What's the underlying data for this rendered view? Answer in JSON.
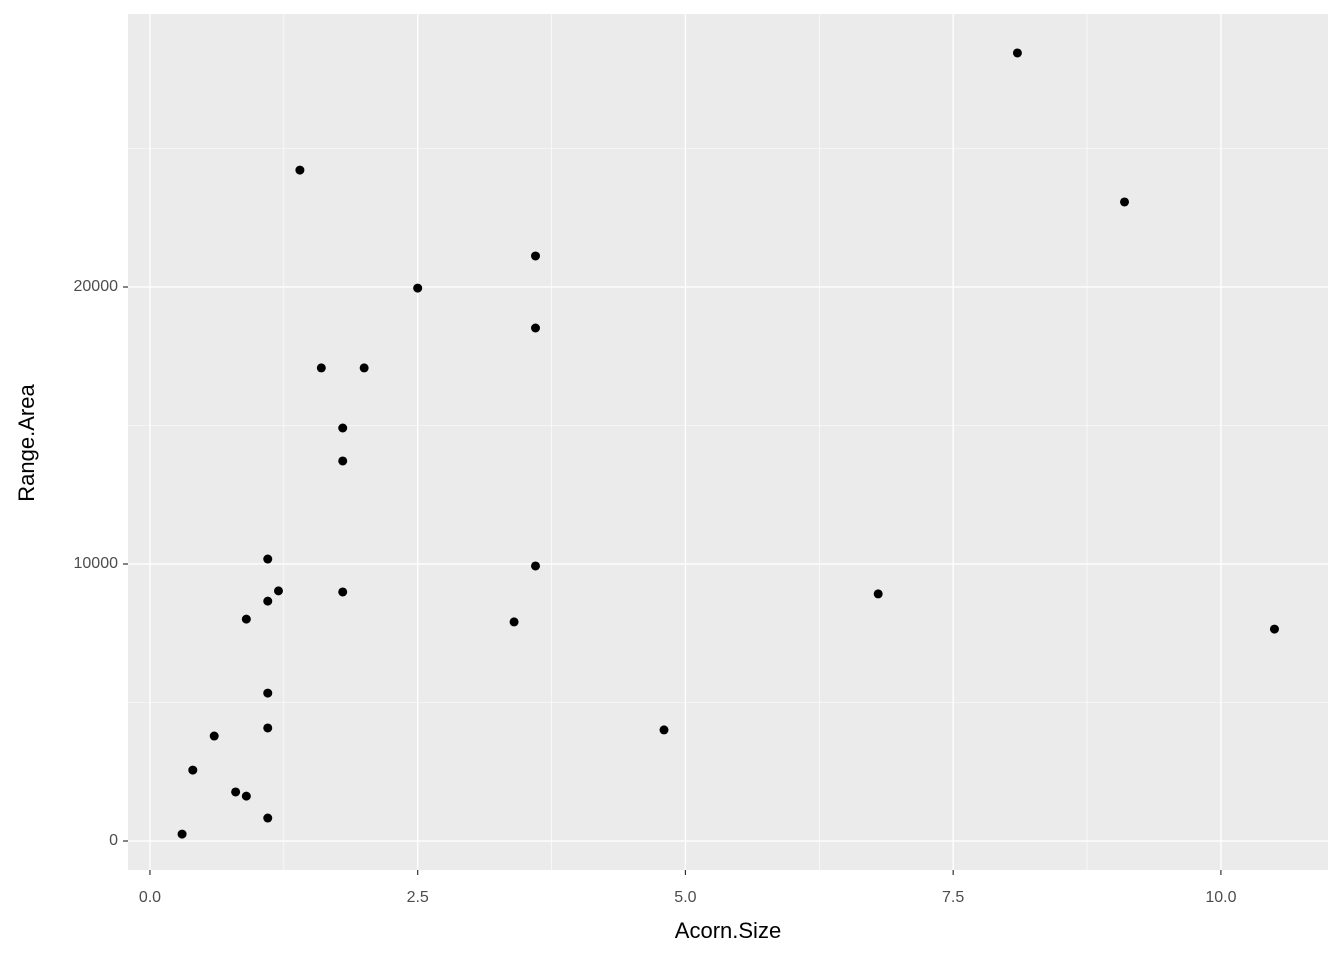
{
  "chart_data": {
    "type": "scatter",
    "x_label": "Acorn.Size",
    "y_label": "Range.Area",
    "x": [
      0.3,
      0.4,
      0.6,
      0.8,
      0.9,
      0.9,
      1.1,
      1.1,
      1.1,
      1.1,
      1.1,
      1.2,
      1.4,
      1.6,
      1.8,
      1.8,
      1.8,
      2.0,
      2.5,
      3.4,
      3.6,
      3.6,
      3.6,
      4.8,
      6.8,
      8.1,
      9.1,
      10.5
    ],
    "values": [
      250,
      2560,
      3790,
      1770,
      1620,
      8010,
      830,
      4080,
      5340,
      8660,
      10180,
      9030,
      24220,
      17080,
      14910,
      13720,
      8990,
      17080,
      19960,
      7910,
      21120,
      18520,
      9930,
      4010,
      8920,
      28450,
      23070,
      7650
    ],
    "color": "#000000",
    "xlim": [
      -0.205,
      11.0
    ],
    "ylim": [
      -1047,
      29856
    ],
    "xticks": [
      {
        "value": 0,
        "label": "0.0"
      },
      2.5,
      {
        "value": 5,
        "label": "5.0"
      },
      7.5,
      {
        "value": 10,
        "label": "10.0"
      }
    ],
    "yticks": [
      0,
      10000,
      20000
    ],
    "grid": true,
    "minor_grid": true
  }
}
